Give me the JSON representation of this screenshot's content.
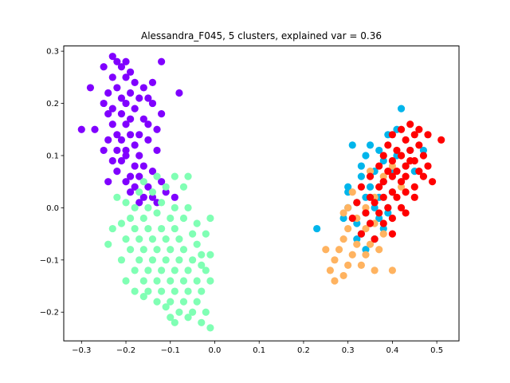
{
  "chart_data": {
    "type": "scatter",
    "title": "Alessandra_F045, 5 clusters, explained var = 0.36",
    "xlabel": "",
    "ylabel": "",
    "xlim": [
      -0.34,
      0.55
    ],
    "ylim": [
      -0.255,
      0.31
    ],
    "xticks": [
      -0.3,
      -0.2,
      -0.1,
      0.0,
      0.1,
      0.2,
      0.3,
      0.4,
      0.5
    ],
    "xtick_labels": [
      "−0.3",
      "−0.2",
      "−0.1",
      "0.0",
      "0.1",
      "0.2",
      "0.3",
      "0.4",
      "0.5"
    ],
    "yticks": [
      -0.2,
      -0.1,
      0.0,
      0.1,
      0.2,
      0.3
    ],
    "ytick_labels": [
      "−0.2",
      "−0.1",
      "0.0",
      "0.1",
      "0.2",
      "0.3"
    ],
    "grid": false,
    "legend": false,
    "series": [
      {
        "color": "#8000ff",
        "points": [
          [
            -0.23,
            0.29
          ],
          [
            -0.22,
            0.28
          ],
          [
            -0.2,
            0.28
          ],
          [
            -0.12,
            0.28
          ],
          [
            -0.25,
            0.27
          ],
          [
            -0.21,
            0.27
          ],
          [
            -0.19,
            0.26
          ],
          [
            -0.23,
            0.25
          ],
          [
            -0.2,
            0.25
          ],
          [
            -0.18,
            0.24
          ],
          [
            -0.14,
            0.24
          ],
          [
            -0.22,
            0.23
          ],
          [
            -0.19,
            0.22
          ],
          [
            -0.16,
            0.23
          ],
          [
            -0.28,
            0.23
          ],
          [
            -0.24,
            0.22
          ],
          [
            -0.21,
            0.21
          ],
          [
            -0.17,
            0.21
          ],
          [
            -0.15,
            0.21
          ],
          [
            -0.25,
            0.2
          ],
          [
            -0.23,
            0.19
          ],
          [
            -0.2,
            0.2
          ],
          [
            -0.18,
            0.19
          ],
          [
            -0.14,
            0.2
          ],
          [
            -0.24,
            0.18
          ],
          [
            -0.21,
            0.18
          ],
          [
            -0.19,
            0.17
          ],
          [
            -0.16,
            0.17
          ],
          [
            -0.23,
            0.16
          ],
          [
            -0.2,
            0.16
          ],
          [
            -0.15,
            0.16
          ],
          [
            -0.3,
            0.15
          ],
          [
            -0.27,
            0.15
          ],
          [
            -0.22,
            0.14
          ],
          [
            -0.19,
            0.14
          ],
          [
            -0.17,
            0.14
          ],
          [
            -0.13,
            0.15
          ],
          [
            -0.24,
            0.13
          ],
          [
            -0.21,
            0.13
          ],
          [
            -0.18,
            0.12
          ],
          [
            -0.15,
            0.13
          ],
          [
            -0.25,
            0.11
          ],
          [
            -0.22,
            0.11
          ],
          [
            -0.2,
            0.11
          ],
          [
            -0.17,
            0.1
          ],
          [
            -0.13,
            0.11
          ],
          [
            -0.23,
            0.09
          ],
          [
            -0.21,
            0.09
          ],
          [
            -0.18,
            0.08
          ],
          [
            -0.16,
            0.08
          ],
          [
            -0.22,
            0.07
          ],
          [
            -0.19,
            0.06
          ],
          [
            -0.17,
            0.06
          ],
          [
            -0.14,
            0.07
          ],
          [
            -0.2,
            0.05
          ],
          [
            -0.18,
            0.04
          ],
          [
            -0.15,
            0.04
          ],
          [
            -0.12,
            0.05
          ],
          [
            -0.19,
            0.03
          ],
          [
            -0.16,
            0.02
          ],
          [
            -0.14,
            0.02
          ],
          [
            -0.11,
            0.03
          ],
          [
            -0.17,
            0.01
          ],
          [
            -0.13,
            0.01
          ],
          [
            -0.09,
            0.02
          ],
          [
            -0.08,
            0.22
          ],
          [
            -0.12,
            0.18
          ],
          [
            -0.2,
            0.1
          ],
          [
            -0.24,
            0.05
          ]
        ]
      },
      {
        "color": "#80ffb4",
        "points": [
          [
            -0.16,
            0.05
          ],
          [
            -0.13,
            0.06
          ],
          [
            -0.09,
            0.06
          ],
          [
            -0.17,
            0.03
          ],
          [
            -0.14,
            0.03
          ],
          [
            -0.11,
            0.04
          ],
          [
            -0.07,
            0.04
          ],
          [
            -0.2,
            0.01
          ],
          [
            -0.18,
            0.0
          ],
          [
            -0.15,
            0.0
          ],
          [
            -0.12,
            0.01
          ],
          [
            -0.09,
            0.0
          ],
          [
            -0.06,
            0.0
          ],
          [
            -0.19,
            -0.02
          ],
          [
            -0.16,
            -0.02
          ],
          [
            -0.13,
            -0.01
          ],
          [
            -0.1,
            -0.02
          ],
          [
            -0.07,
            -0.02
          ],
          [
            -0.04,
            -0.03
          ],
          [
            -0.21,
            -0.03
          ],
          [
            -0.18,
            -0.04
          ],
          [
            -0.15,
            -0.04
          ],
          [
            -0.12,
            -0.04
          ],
          [
            -0.09,
            -0.04
          ],
          [
            -0.05,
            -0.05
          ],
          [
            -0.23,
            -0.04
          ],
          [
            -0.2,
            -0.06
          ],
          [
            -0.17,
            -0.06
          ],
          [
            -0.14,
            -0.06
          ],
          [
            -0.11,
            -0.06
          ],
          [
            -0.08,
            -0.06
          ],
          [
            -0.04,
            -0.07
          ],
          [
            -0.19,
            -0.08
          ],
          [
            -0.16,
            -0.08
          ],
          [
            -0.13,
            -0.08
          ],
          [
            -0.1,
            -0.08
          ],
          [
            -0.07,
            -0.08
          ],
          [
            -0.03,
            -0.09
          ],
          [
            -0.21,
            -0.1
          ],
          [
            -0.17,
            -0.1
          ],
          [
            -0.14,
            -0.1
          ],
          [
            -0.11,
            -0.1
          ],
          [
            -0.08,
            -0.1
          ],
          [
            -0.05,
            -0.1
          ],
          [
            -0.01,
            -0.09
          ],
          [
            -0.18,
            -0.12
          ],
          [
            -0.15,
            -0.12
          ],
          [
            -0.12,
            -0.12
          ],
          [
            -0.09,
            -0.12
          ],
          [
            -0.06,
            -0.12
          ],
          [
            -0.02,
            -0.12
          ],
          [
            -0.2,
            -0.14
          ],
          [
            -0.16,
            -0.14
          ],
          [
            -0.13,
            -0.14
          ],
          [
            -0.1,
            -0.14
          ],
          [
            -0.07,
            -0.14
          ],
          [
            -0.04,
            -0.14
          ],
          [
            -0.01,
            -0.14
          ],
          [
            -0.18,
            -0.16
          ],
          [
            -0.15,
            -0.16
          ],
          [
            -0.12,
            -0.16
          ],
          [
            -0.09,
            -0.16
          ],
          [
            -0.06,
            -0.16
          ],
          [
            -0.03,
            -0.16
          ],
          [
            -0.16,
            -0.17
          ],
          [
            -0.13,
            -0.18
          ],
          [
            -0.1,
            -0.18
          ],
          [
            -0.07,
            -0.18
          ],
          [
            -0.04,
            -0.18
          ],
          [
            -0.11,
            -0.19
          ],
          [
            -0.08,
            -0.2
          ],
          [
            -0.05,
            -0.2
          ],
          [
            -0.02,
            -0.2
          ],
          [
            -0.1,
            -0.21
          ],
          [
            -0.06,
            -0.21
          ],
          [
            -0.03,
            -0.22
          ],
          [
            -0.01,
            -0.23
          ],
          [
            -0.09,
            -0.22
          ],
          [
            -0.22,
            0.02
          ],
          [
            -0.06,
            0.06
          ],
          [
            -0.02,
            -0.05
          ],
          [
            -0.24,
            -0.07
          ],
          [
            -0.01,
            -0.02
          ],
          [
            -0.03,
            -0.11
          ]
        ]
      },
      {
        "color": "#00b5eb",
        "points": [
          [
            0.42,
            0.19
          ],
          [
            0.41,
            0.15
          ],
          [
            0.39,
            0.14
          ],
          [
            0.35,
            0.12
          ],
          [
            0.31,
            0.12
          ],
          [
            0.37,
            0.11
          ],
          [
            0.44,
            0.11
          ],
          [
            0.47,
            0.11
          ],
          [
            0.34,
            0.1
          ],
          [
            0.41,
            0.1
          ],
          [
            0.38,
            0.09
          ],
          [
            0.33,
            0.08
          ],
          [
            0.43,
            0.08
          ],
          [
            0.36,
            0.07
          ],
          [
            0.4,
            0.07
          ],
          [
            0.45,
            0.07
          ],
          [
            0.33,
            0.06
          ],
          [
            0.38,
            0.05
          ],
          [
            0.42,
            0.05
          ],
          [
            0.3,
            0.04
          ],
          [
            0.35,
            0.04
          ],
          [
            0.4,
            0.03
          ],
          [
            0.3,
            0.03
          ],
          [
            0.34,
            0.02
          ],
          [
            0.37,
            0.02
          ],
          [
            0.32,
            0.01
          ],
          [
            0.36,
            0.0
          ],
          [
            0.39,
            0.0
          ],
          [
            0.3,
            0.0
          ],
          [
            0.34,
            -0.01
          ],
          [
            0.37,
            -0.02
          ],
          [
            0.29,
            -0.02
          ],
          [
            0.32,
            -0.03
          ],
          [
            0.35,
            -0.03
          ],
          [
            0.38,
            -0.04
          ],
          [
            0.33,
            -0.05
          ],
          [
            0.36,
            -0.06
          ],
          [
            0.23,
            -0.04
          ],
          [
            0.34,
            -0.08
          ],
          [
            0.32,
            -0.06
          ],
          [
            0.39,
            -0.01
          ]
        ]
      },
      {
        "color": "#ffb360",
        "points": [
          [
            0.35,
            0.07
          ],
          [
            0.38,
            0.06
          ],
          [
            0.42,
            0.04
          ],
          [
            0.31,
            0.03
          ],
          [
            0.36,
            0.02
          ],
          [
            0.3,
            0.0
          ],
          [
            0.34,
            0.0
          ],
          [
            0.37,
            -0.01
          ],
          [
            0.29,
            -0.01
          ],
          [
            0.32,
            -0.02
          ],
          [
            0.36,
            -0.03
          ],
          [
            0.3,
            -0.04
          ],
          [
            0.34,
            -0.04
          ],
          [
            0.38,
            -0.05
          ],
          [
            0.29,
            -0.06
          ],
          [
            0.32,
            -0.07
          ],
          [
            0.35,
            -0.07
          ],
          [
            0.28,
            -0.08
          ],
          [
            0.31,
            -0.09
          ],
          [
            0.34,
            -0.09
          ],
          [
            0.37,
            -0.08
          ],
          [
            0.25,
            -0.08
          ],
          [
            0.27,
            -0.1
          ],
          [
            0.3,
            -0.11
          ],
          [
            0.33,
            -0.11
          ],
          [
            0.36,
            -0.12
          ],
          [
            0.26,
            -0.12
          ],
          [
            0.29,
            -0.13
          ],
          [
            0.27,
            -0.14
          ],
          [
            0.4,
            -0.12
          ],
          [
            0.4,
            0.08
          ],
          [
            0.42,
            0.1
          ]
        ]
      },
      {
        "color": "#ff0000",
        "points": [
          [
            0.44,
            0.16
          ],
          [
            0.46,
            0.15
          ],
          [
            0.42,
            0.15
          ],
          [
            0.4,
            0.14
          ],
          [
            0.45,
            0.14
          ],
          [
            0.48,
            0.14
          ],
          [
            0.43,
            0.13
          ],
          [
            0.39,
            0.12
          ],
          [
            0.46,
            0.12
          ],
          [
            0.51,
            0.13
          ],
          [
            0.41,
            0.11
          ],
          [
            0.44,
            0.11
          ],
          [
            0.38,
            0.1
          ],
          [
            0.42,
            0.1
          ],
          [
            0.47,
            0.1
          ],
          [
            0.4,
            0.09
          ],
          [
            0.45,
            0.09
          ],
          [
            0.37,
            0.08
          ],
          [
            0.43,
            0.08
          ],
          [
            0.48,
            0.08
          ],
          [
            0.39,
            0.07
          ],
          [
            0.41,
            0.07
          ],
          [
            0.46,
            0.07
          ],
          [
            0.35,
            0.06
          ],
          [
            0.4,
            0.06
          ],
          [
            0.43,
            0.06
          ],
          [
            0.47,
            0.06
          ],
          [
            0.38,
            0.05
          ],
          [
            0.42,
            0.05
          ],
          [
            0.45,
            0.04
          ],
          [
            0.33,
            0.04
          ],
          [
            0.37,
            0.04
          ],
          [
            0.4,
            0.03
          ],
          [
            0.43,
            0.03
          ],
          [
            0.35,
            0.02
          ],
          [
            0.38,
            0.02
          ],
          [
            0.41,
            0.02
          ],
          [
            0.45,
            0.02
          ],
          [
            0.32,
            0.01
          ],
          [
            0.36,
            0.01
          ],
          [
            0.39,
            0.0
          ],
          [
            0.42,
            0.0
          ],
          [
            0.34,
            -0.01
          ],
          [
            0.37,
            -0.01
          ],
          [
            0.4,
            -0.02
          ],
          [
            0.31,
            -0.02
          ],
          [
            0.35,
            -0.03
          ],
          [
            0.38,
            -0.03
          ],
          [
            0.33,
            -0.05
          ],
          [
            0.4,
            -0.05
          ],
          [
            0.36,
            -0.06
          ],
          [
            0.43,
            -0.01
          ],
          [
            0.49,
            0.05
          ],
          [
            0.44,
            0.09
          ]
        ]
      }
    ]
  }
}
